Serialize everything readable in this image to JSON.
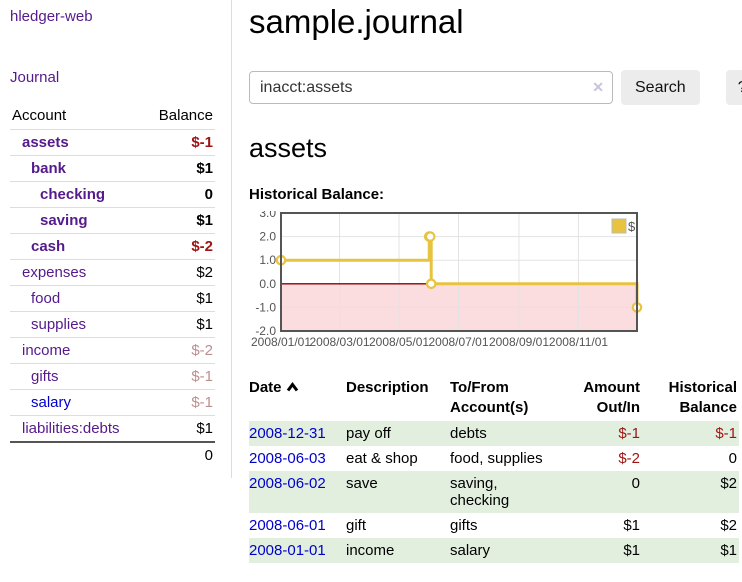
{
  "app": {
    "brand": "hledger-web"
  },
  "colors": {
    "link_purple": "#551a8b",
    "link_blue": "#0000cc",
    "negative_strong": "#9d1414",
    "negative_faded": "#bc8f8f",
    "row_green": "#e2efdf",
    "chart_line_gold": "#e8c340",
    "chart_zero_line": "#8b0000",
    "chart_negative_fill": "#fbdcdf",
    "chart_border": "#545454",
    "button_gray": "#ececec"
  },
  "sidebar": {
    "journal_link": "Journal",
    "accounts": {
      "header_account": "Account",
      "header_balance": "Balance",
      "rows": [
        {
          "account": "assets",
          "balance": "$-1"
        },
        {
          "account": "bank",
          "balance": "$1"
        },
        {
          "account": "checking",
          "balance": "0"
        },
        {
          "account": "saving",
          "balance": "$1"
        },
        {
          "account": "cash",
          "balance": "$-2"
        },
        {
          "account": "expenses",
          "balance": "$2"
        },
        {
          "account": "food",
          "balance": "$1"
        },
        {
          "account": "supplies",
          "balance": "$1"
        },
        {
          "account": "income",
          "balance": "$-2"
        },
        {
          "account": "gifts",
          "balance": "$-1"
        },
        {
          "account": "salary",
          "balance": "$-1"
        },
        {
          "account": "liabilities:debts",
          "balance": "$1"
        }
      ],
      "total": "0"
    }
  },
  "header": {
    "title": "sample.journal"
  },
  "search": {
    "value": "inacct:assets",
    "clear_icon": "✕",
    "button_label": "Search",
    "help_label": "?"
  },
  "account_page": {
    "heading": "assets",
    "chart_label": "Historical Balance:"
  },
  "chart_data": {
    "type": "line",
    "title": "Historical Balance",
    "step": true,
    "series": [
      {
        "name": "$",
        "points": [
          {
            "date": "2008-01-01",
            "value": 1
          },
          {
            "date": "2008-06-01",
            "value": 2
          },
          {
            "date": "2008-06-02",
            "value": 2
          },
          {
            "date": "2008-06-03",
            "value": 0
          },
          {
            "date": "2008-12-31",
            "value": -1
          }
        ]
      }
    ],
    "x_range": [
      "2008-01-01",
      "2008-12-31"
    ],
    "x_ticks": [
      {
        "date": "2008-01-01",
        "label": "2008/01/01"
      },
      {
        "date": "2008-03-01",
        "label": "2008/03/01"
      },
      {
        "date": "2008-05-01",
        "label": "2008/05/01"
      },
      {
        "date": "2008-07-01",
        "label": "2008/07/01"
      },
      {
        "date": "2008-09-01",
        "label": "2008/09/01"
      },
      {
        "date": "2008-11-01",
        "label": "2008/11/01"
      }
    ],
    "y_ticks": [
      3.0,
      2.0,
      1.0,
      0.0,
      -1.0,
      -2.0
    ],
    "ylim": [
      -2,
      3
    ],
    "grid": true,
    "legend_position": "top-right"
  },
  "transactions": {
    "headers": {
      "date": "Date",
      "sort_order": "ascending",
      "description": "Description",
      "accounts": "To/From Account(s)",
      "amount": "Amount Out/In",
      "balance": "Historical Balance"
    },
    "rows": [
      {
        "date": "2008-12-31",
        "description": "pay off",
        "accounts": "debts",
        "amount": "$-1",
        "balance": "$-1"
      },
      {
        "date": "2008-06-03",
        "description": "eat & shop",
        "accounts": "food, supplies",
        "amount": "$-2",
        "balance": "0"
      },
      {
        "date": "2008-06-02",
        "description": "save",
        "accounts": "saving, checking",
        "amount": "0",
        "balance": "$2"
      },
      {
        "date": "2008-06-01",
        "description": "gift",
        "accounts": "gifts",
        "amount": "$1",
        "balance": "$2"
      },
      {
        "date": "2008-01-01",
        "description": "income",
        "accounts": "salary",
        "amount": "$1",
        "balance": "$1"
      }
    ]
  }
}
